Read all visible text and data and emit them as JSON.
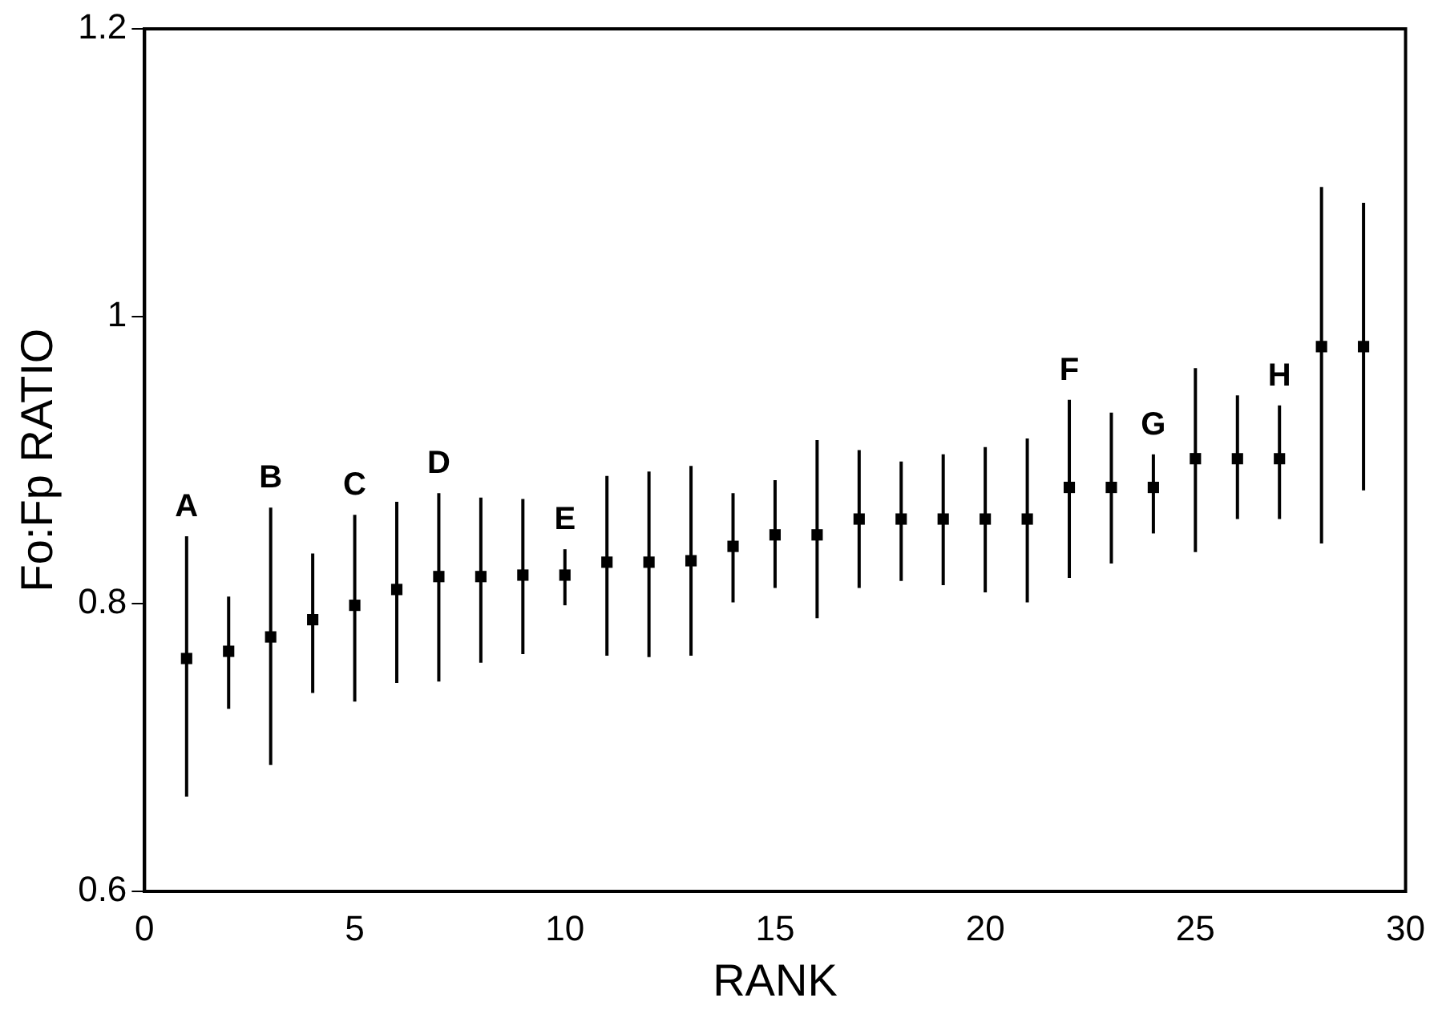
{
  "chart_data": {
    "type": "scatter",
    "xlabel": "RANK",
    "ylabel": "Fo:Fp RATIO",
    "x": [
      1,
      2,
      3,
      4,
      5,
      6,
      7,
      8,
      9,
      10,
      11,
      12,
      13,
      14,
      15,
      16,
      17,
      18,
      19,
      20,
      21,
      22,
      23,
      24,
      25,
      26,
      27,
      28,
      29
    ],
    "values": [
      0.762,
      0.767,
      0.777,
      0.789,
      0.799,
      0.81,
      0.819,
      0.819,
      0.82,
      0.82,
      0.829,
      0.829,
      0.83,
      0.84,
      0.848,
      0.848,
      0.859,
      0.859,
      0.859,
      0.859,
      0.859,
      0.881,
      0.881,
      0.881,
      0.901,
      0.901,
      0.901,
      0.979,
      0.979
    ],
    "errors": [
      [
        0.666,
        0.847
      ],
      [
        0.727,
        0.805
      ],
      [
        0.688,
        0.867
      ],
      [
        0.738,
        0.835
      ],
      [
        0.732,
        0.862
      ],
      [
        0.745,
        0.871
      ],
      [
        0.746,
        0.877
      ],
      [
        0.759,
        0.874
      ],
      [
        0.765,
        0.873
      ],
      [
        0.799,
        0.838
      ],
      [
        0.764,
        0.889
      ],
      [
        0.763,
        0.892
      ],
      [
        0.764,
        0.896
      ],
      [
        0.801,
        0.877
      ],
      [
        0.811,
        0.886
      ],
      [
        0.79,
        0.914
      ],
      [
        0.811,
        0.907
      ],
      [
        0.816,
        0.899
      ],
      [
        0.813,
        0.904
      ],
      [
        0.808,
        0.909
      ],
      [
        0.801,
        0.915
      ],
      [
        0.818,
        0.942
      ],
      [
        0.828,
        0.933
      ],
      [
        0.849,
        0.904
      ],
      [
        0.836,
        0.964
      ],
      [
        0.859,
        0.945
      ],
      [
        0.859,
        0.938
      ],
      [
        0.842,
        1.09
      ],
      [
        0.879,
        1.079
      ]
    ],
    "color": "#000000",
    "marker": "square",
    "grid": false,
    "legend": false,
    "xlim": [
      0,
      30
    ],
    "xticks": [
      0,
      5,
      10,
      15,
      20,
      25,
      30
    ],
    "ylim": [
      0.6,
      1.2
    ],
    "yticks": [
      0.6,
      0.8,
      1,
      1.2
    ],
    "annotations": [
      {
        "text": "A",
        "x": 1,
        "y": 0.847
      },
      {
        "text": "B",
        "x": 3,
        "y": 0.867
      },
      {
        "text": "C",
        "x": 5,
        "y": 0.862
      },
      {
        "text": "D",
        "x": 7,
        "y": 0.877
      },
      {
        "text": "E",
        "x": 10,
        "y": 0.838
      },
      {
        "text": "F",
        "x": 22,
        "y": 0.942
      },
      {
        "text": "G",
        "x": 24,
        "y": 0.904
      },
      {
        "text": "H",
        "x": 27,
        "y": 0.938
      }
    ]
  }
}
